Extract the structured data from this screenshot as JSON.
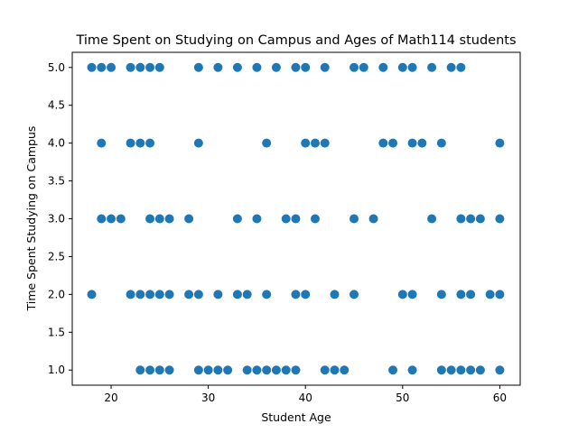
{
  "chart_data": {
    "type": "scatter",
    "title": "Time Spent on Studying on Campus and Ages of Math114 students",
    "xlabel": "Student Age",
    "ylabel": "Time Spent Studying on Campus",
    "xlim": [
      16.0,
      62.1
    ],
    "ylim": [
      0.8,
      5.2
    ],
    "xticks": [
      20,
      30,
      40,
      50,
      60
    ],
    "yticks": [
      1.0,
      1.5,
      2.0,
      2.5,
      3.0,
      3.5,
      4.0,
      4.5,
      5.0
    ],
    "grid": false,
    "marker_color": "#1f77b4",
    "points": [
      [
        18,
        5
      ],
      [
        19,
        5
      ],
      [
        20,
        5
      ],
      [
        22,
        5
      ],
      [
        23,
        5
      ],
      [
        24,
        5
      ],
      [
        25,
        5
      ],
      [
        29,
        5
      ],
      [
        31,
        5
      ],
      [
        33,
        5
      ],
      [
        35,
        5
      ],
      [
        37,
        5
      ],
      [
        39,
        5
      ],
      [
        40,
        5
      ],
      [
        42,
        5
      ],
      [
        45,
        5
      ],
      [
        46,
        5
      ],
      [
        48,
        5
      ],
      [
        50,
        5
      ],
      [
        51,
        5
      ],
      [
        53,
        5
      ],
      [
        55,
        5
      ],
      [
        56,
        5
      ],
      [
        19,
        4
      ],
      [
        22,
        4
      ],
      [
        23,
        4
      ],
      [
        24,
        4
      ],
      [
        29,
        4
      ],
      [
        36,
        4
      ],
      [
        40,
        4
      ],
      [
        41,
        4
      ],
      [
        42,
        4
      ],
      [
        48,
        4
      ],
      [
        49,
        4
      ],
      [
        51,
        4
      ],
      [
        52,
        4
      ],
      [
        54,
        4
      ],
      [
        60,
        4
      ],
      [
        19,
        3
      ],
      [
        20,
        3
      ],
      [
        21,
        3
      ],
      [
        24,
        3
      ],
      [
        25,
        3
      ],
      [
        26,
        3
      ],
      [
        28,
        3
      ],
      [
        33,
        3
      ],
      [
        35,
        3
      ],
      [
        38,
        3
      ],
      [
        39,
        3
      ],
      [
        41,
        3
      ],
      [
        45,
        3
      ],
      [
        47,
        3
      ],
      [
        53,
        3
      ],
      [
        56,
        3
      ],
      [
        57,
        3
      ],
      [
        58,
        3
      ],
      [
        60,
        3
      ],
      [
        18,
        2
      ],
      [
        22,
        2
      ],
      [
        23,
        2
      ],
      [
        24,
        2
      ],
      [
        25,
        2
      ],
      [
        26,
        2
      ],
      [
        28,
        2
      ],
      [
        29,
        2
      ],
      [
        31,
        2
      ],
      [
        33,
        2
      ],
      [
        34,
        2
      ],
      [
        36,
        2
      ],
      [
        39,
        2
      ],
      [
        40,
        2
      ],
      [
        43,
        2
      ],
      [
        45,
        2
      ],
      [
        50,
        2
      ],
      [
        51,
        2
      ],
      [
        54,
        2
      ],
      [
        56,
        2
      ],
      [
        57,
        2
      ],
      [
        59,
        2
      ],
      [
        60,
        2
      ],
      [
        23,
        1
      ],
      [
        24,
        1
      ],
      [
        25,
        1
      ],
      [
        26,
        1
      ],
      [
        29,
        1
      ],
      [
        30,
        1
      ],
      [
        31,
        1
      ],
      [
        32,
        1
      ],
      [
        34,
        1
      ],
      [
        35,
        1
      ],
      [
        36,
        1
      ],
      [
        37,
        1
      ],
      [
        38,
        1
      ],
      [
        39,
        1
      ],
      [
        42,
        1
      ],
      [
        43,
        1
      ],
      [
        44,
        1
      ],
      [
        49,
        1
      ],
      [
        51,
        1
      ],
      [
        54,
        1
      ],
      [
        55,
        1
      ],
      [
        56,
        1
      ],
      [
        57,
        1
      ],
      [
        58,
        1
      ],
      [
        60,
        1
      ]
    ]
  }
}
